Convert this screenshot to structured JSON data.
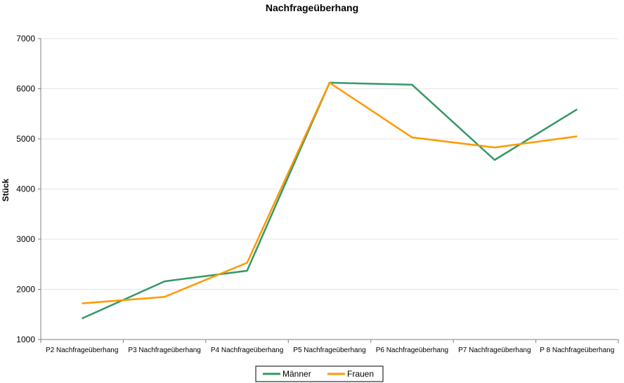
{
  "colors": {
    "maenner": "#339966",
    "frauen": "#ff9900",
    "axis": "#808080",
    "grid": "#e6e6e6"
  },
  "chart_data": {
    "type": "line",
    "title": "Nachfrageüberhang",
    "xlabel": "",
    "ylabel": "Stück",
    "ylim": [
      1000,
      7000
    ],
    "yticks": [
      1000,
      2000,
      3000,
      4000,
      5000,
      6000,
      7000
    ],
    "grid": true,
    "legend": "bottom",
    "categories": [
      "P2 Nachfrageüberhang",
      "P3 Nachfrageüberhang",
      "P4 Nachfrageüberhang",
      "P5 Nachfrageüberhang",
      "P6 Nachfrageüberhang",
      "P7 Nachfrageüberhang",
      "P 8 Nachfrageüberhang"
    ],
    "series": [
      {
        "name": "Männer",
        "color": "#339966",
        "values": [
          1420,
          2160,
          2370,
          6120,
          6080,
          4580,
          5590
        ]
      },
      {
        "name": "Frauen",
        "color": "#ff9900",
        "values": [
          1720,
          1850,
          2530,
          6120,
          5030,
          4830,
          5050
        ]
      }
    ]
  }
}
